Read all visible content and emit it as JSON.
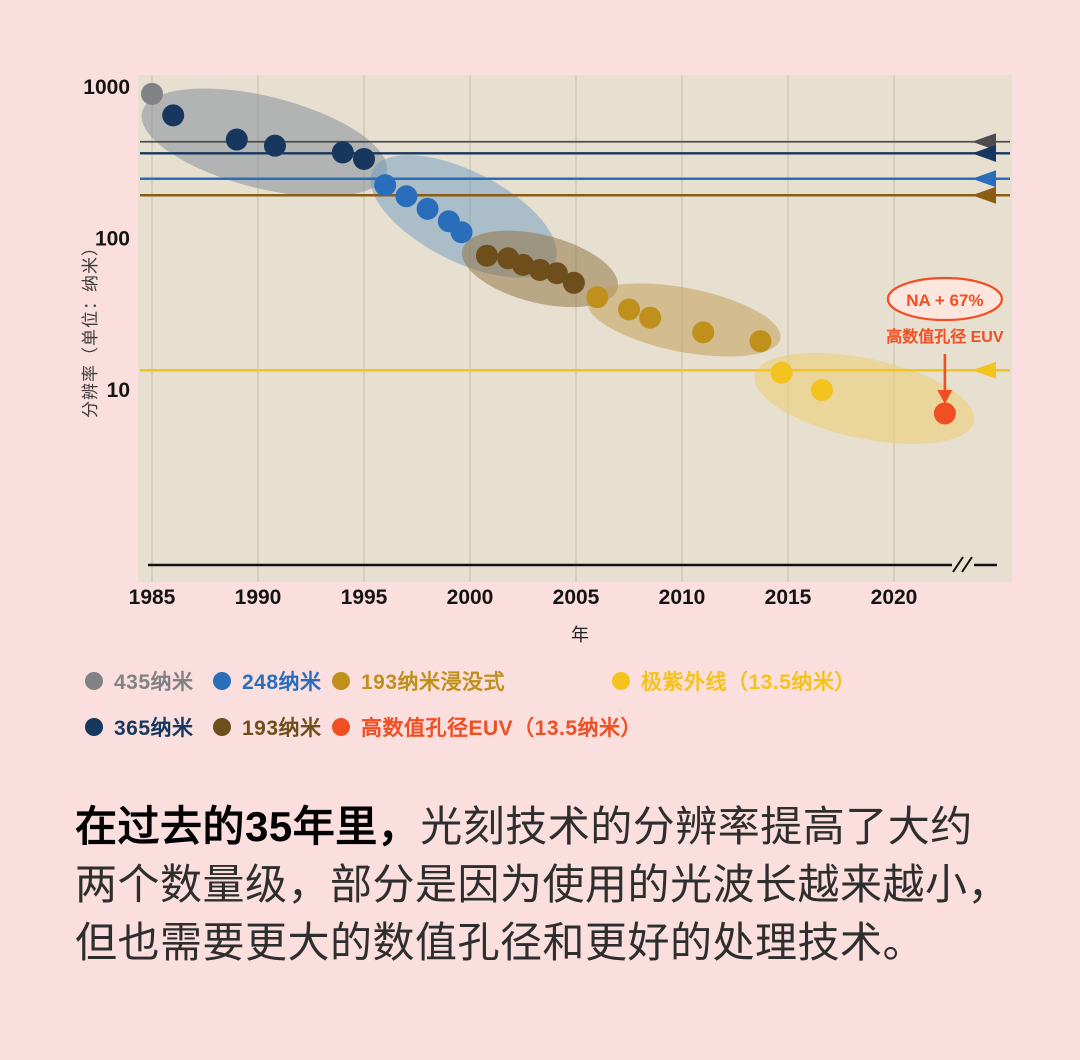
{
  "page": {
    "background": "#fbdede",
    "plot_background": "#e7e0d1",
    "gridline_color": "#d0c8b7",
    "axis_color": "#141414"
  },
  "chart_data": {
    "type": "scatter",
    "title": "",
    "xlabel": "年",
    "ylabel": "分辨率（单位：纳米）",
    "y_scale": "log",
    "x_ticks": [
      1985,
      1990,
      1995,
      2000,
      2005,
      2010,
      2015,
      2020
    ],
    "y_ticks": [
      1000,
      100,
      10
    ],
    "x_range": [
      1984.3,
      2025.5
    ],
    "series": [
      {
        "name": "435纳米",
        "color": "#808285",
        "points": [
          [
            1985,
            900
          ]
        ]
      },
      {
        "name": "365纳米",
        "color": "#17375e",
        "points": [
          [
            1986,
            650
          ],
          [
            1989,
            450
          ],
          [
            1990.8,
            410
          ],
          [
            1994,
            370
          ],
          [
            1995,
            335
          ]
        ]
      },
      {
        "name": "248纳米",
        "color": "#2a6ebb",
        "points": [
          [
            1996,
            225
          ],
          [
            1997,
            190
          ],
          [
            1998,
            157
          ],
          [
            1999,
            130
          ],
          [
            1999.6,
            110
          ]
        ]
      },
      {
        "name": "193纳米",
        "color": "#6e4e1b",
        "points": [
          [
            2000.8,
            77
          ],
          [
            2001.8,
            74
          ],
          [
            2002.5,
            67
          ],
          [
            2003.3,
            62
          ],
          [
            2004.1,
            59
          ],
          [
            2004.9,
            51
          ]
        ]
      },
      {
        "name": "193纳米浸没式",
        "color": "#c0901d",
        "points": [
          [
            2006,
            41
          ],
          [
            2007.5,
            34
          ],
          [
            2008.5,
            30
          ],
          [
            2011,
            24
          ],
          [
            2013.7,
            21
          ]
        ]
      },
      {
        "name": "极紫外线（13.5纳米）",
        "color": "#f5c31d",
        "points": [
          [
            2014.7,
            13
          ],
          [
            2016.6,
            10
          ]
        ]
      },
      {
        "name": "高数值孔径EUV（13.5纳米）",
        "color": "#f04e23",
        "points": [
          [
            2022.4,
            7
          ]
        ]
      }
    ],
    "wavelength_lines": [
      {
        "nm": 435,
        "color": "#4d4d4f",
        "width": 1.8
      },
      {
        "nm": 365,
        "color": "#17375e",
        "width": 2.4
      },
      {
        "nm": 248,
        "color": "#2a6ebb",
        "width": 2.4
      },
      {
        "nm": 193,
        "color": "#8a5d15",
        "width": 2.4
      },
      {
        "nm": 13.5,
        "color": "#f5c31d",
        "width": 2.4
      }
    ],
    "clusters": [
      {
        "year": 1990.3,
        "value": 430,
        "rx": 126,
        "ry": 46,
        "rot": 14,
        "color": "#7b8894",
        "opacity": 0.5
      },
      {
        "year": 1999.7,
        "value": 140,
        "rx": 102,
        "ry": 45,
        "rot": 27,
        "color": "#6d9ac2",
        "opacity": 0.5
      },
      {
        "year": 2003.3,
        "value": 63,
        "rx": 80,
        "ry": 34,
        "rot": 14,
        "color": "#8d6d3a",
        "opacity": 0.5
      },
      {
        "year": 2010.1,
        "value": 29,
        "rx": 98,
        "ry": 32,
        "rot": 11,
        "color": "#c2a058",
        "opacity": 0.55
      },
      {
        "year": 2018.6,
        "value": 8.8,
        "rx": 112,
        "ry": 40,
        "rot": 12,
        "color": "#eccf79",
        "opacity": 0.62
      }
    ],
    "annotation": {
      "badge": "NA + 67%",
      "label": "高数值孔径 EUV",
      "color": "#f04e23",
      "badge_fill": "#fce6dd",
      "target_year": 2022.4,
      "target_value": 7
    }
  },
  "legend": {
    "rows": [
      [
        {
          "label": "435纳米",
          "color": "#808285"
        },
        {
          "label": "248纳米",
          "color": "#2a6ebb"
        },
        {
          "label": "193纳米浸没式",
          "color": "#c0901d"
        },
        {
          "label": "极紫外线（13.5纳米）",
          "color": "#f5c31d"
        }
      ],
      [
        {
          "label": "365纳米",
          "color": "#17375e"
        },
        {
          "label": "193纳米",
          "color": "#6e4e1b"
        },
        {
          "label": "高数值孔径EUV（13.5纳米）",
          "color": "#f04e23"
        }
      ]
    ]
  },
  "caption": {
    "lead": "在过去的35年里，",
    "line1_rest": "光刻技术的分辨率提高了大约",
    "line2": "两个数量级，部分是因为使用的光波长越来越小，",
    "line3": "但也需要更大的数值孔径和更好的处理技术。"
  }
}
